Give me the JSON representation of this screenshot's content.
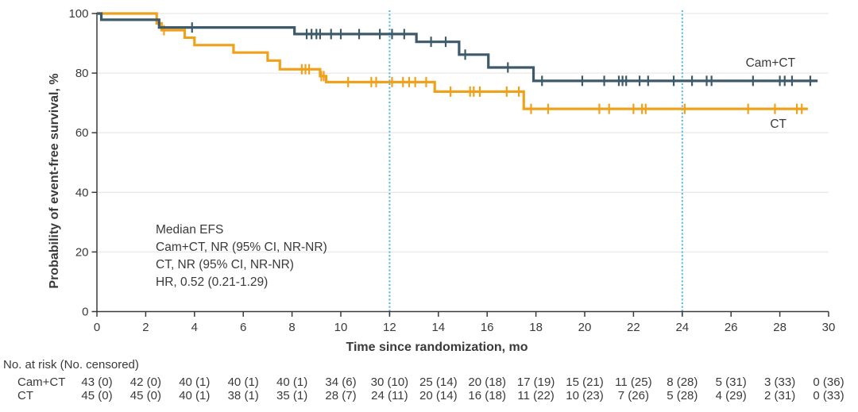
{
  "chart_data": {
    "type": "line",
    "subtype": "kaplan-meier-step",
    "xlabel": "Time since randomization, mo",
    "ylabel": "Probability of event-free survival, %",
    "x_range": [
      0,
      30
    ],
    "y_range": [
      0,
      100
    ],
    "x_ticks": [
      0,
      2,
      4,
      6,
      8,
      10,
      12,
      14,
      16,
      18,
      20,
      22,
      24,
      26,
      28,
      30
    ],
    "y_ticks": [
      0,
      20,
      40,
      60,
      80,
      100
    ],
    "grid_y": [
      20,
      40,
      60,
      80,
      100
    ],
    "grid_color": "#e9e9e9",
    "axis_color": "#3a3a3a",
    "vlines": {
      "x": [
        12,
        24
      ],
      "color": "#47B5E6"
    },
    "annotation": [
      "Median EFS",
      "Cam+CT, NR (95% CI, NR-NR)",
      "CT, NR (95% CI, NR-NR)",
      "HR, 0.52 (0.21-1.29)"
    ],
    "series": [
      {
        "name": "CT",
        "color": "#F0A11C",
        "start": 100,
        "steps": [
          [
            2.45,
            96.7
          ],
          [
            2.65,
            94.4
          ],
          [
            3.6,
            91.9
          ],
          [
            4.0,
            89.4
          ],
          [
            5.6,
            86.9
          ],
          [
            7.0,
            84.2
          ],
          [
            7.5,
            81.3
          ],
          [
            9.15,
            79.0
          ],
          [
            9.4,
            77.0
          ],
          [
            13.85,
            73.8
          ],
          [
            17.5,
            68.0
          ]
        ],
        "end": 29.15,
        "censors": [
          [
            2.75,
            94.4
          ],
          [
            8.4,
            81.3
          ],
          [
            8.55,
            81.3
          ],
          [
            8.7,
            81.3
          ],
          [
            9.2,
            79.0
          ],
          [
            9.3,
            79.0
          ],
          [
            10.3,
            77.0
          ],
          [
            11.25,
            77.0
          ],
          [
            11.45,
            77.0
          ],
          [
            12.1,
            77.0
          ],
          [
            12.55,
            77.0
          ],
          [
            12.8,
            77.0
          ],
          [
            13.05,
            77.0
          ],
          [
            13.5,
            77.0
          ],
          [
            14.5,
            73.8
          ],
          [
            15.3,
            73.8
          ],
          [
            15.45,
            73.8
          ],
          [
            15.7,
            73.8
          ],
          [
            16.8,
            73.8
          ],
          [
            17.3,
            73.8
          ],
          [
            17.8,
            68.0
          ],
          [
            18.5,
            68.0
          ],
          [
            20.6,
            68.0
          ],
          [
            21.0,
            68.0
          ],
          [
            22.0,
            68.0
          ],
          [
            22.35,
            68.0
          ],
          [
            22.5,
            68.0
          ],
          [
            24.1,
            68.0
          ],
          [
            26.7,
            68.0
          ],
          [
            27.8,
            68.0
          ],
          [
            28.7,
            68.0
          ],
          [
            28.9,
            68.0
          ]
        ],
        "label_mo": 27.6,
        "label_pct": 62.7
      },
      {
        "name": "Cam+CT",
        "color": "#3D5A6B",
        "start": 100,
        "steps": [
          [
            0.18,
            97.9
          ],
          [
            2.55,
            95.3
          ],
          [
            8.1,
            93.1
          ],
          [
            13.1,
            90.5
          ],
          [
            14.85,
            86.2
          ],
          [
            16.05,
            81.9
          ],
          [
            17.9,
            77.4
          ]
        ],
        "end": 29.55,
        "censors": [
          [
            3.9,
            95.3
          ],
          [
            8.6,
            93.1
          ],
          [
            8.8,
            93.1
          ],
          [
            9.0,
            93.1
          ],
          [
            9.15,
            93.1
          ],
          [
            9.6,
            93.1
          ],
          [
            10.0,
            93.1
          ],
          [
            10.75,
            93.1
          ],
          [
            11.6,
            93.1
          ],
          [
            12.1,
            93.1
          ],
          [
            12.6,
            93.1
          ],
          [
            13.7,
            90.5
          ],
          [
            14.3,
            90.5
          ],
          [
            15.1,
            86.2
          ],
          [
            16.85,
            81.9
          ],
          [
            18.25,
            77.4
          ],
          [
            19.9,
            77.4
          ],
          [
            20.8,
            77.4
          ],
          [
            21.4,
            77.4
          ],
          [
            21.55,
            77.4
          ],
          [
            21.7,
            77.4
          ],
          [
            22.25,
            77.4
          ],
          [
            22.6,
            77.4
          ],
          [
            23.65,
            77.4
          ],
          [
            24.4,
            77.4
          ],
          [
            25.0,
            77.4
          ],
          [
            25.2,
            77.4
          ],
          [
            26.9,
            77.4
          ],
          [
            28.0,
            77.4
          ],
          [
            28.2,
            77.4
          ],
          [
            28.5,
            77.4
          ],
          [
            29.25,
            77.4
          ]
        ],
        "label_mo": 26.6,
        "label_pct": 83.2
      }
    ],
    "risk_table": {
      "header": "No. at risk (No. censored)",
      "rows": [
        {
          "label": "Cam+CT",
          "values": [
            "43 (0)",
            "42 (0)",
            "40 (1)",
            "40 (1)",
            "40 (1)",
            "34 (6)",
            "30 (10)",
            "25 (14)",
            "20 (18)",
            "17 (19)",
            "15 (21)",
            "11 (25)",
            "8 (28)",
            "5 (31)",
            "3 (33)",
            "0 (36)"
          ]
        },
        {
          "label": "CT",
          "values": [
            "45 (0)",
            "45 (0)",
            "40 (1)",
            "38 (1)",
            "35 (1)",
            "28 (7)",
            "24 (11)",
            "20 (14)",
            "16 (18)",
            "11 (22)",
            "10 (23)",
            "7 (26)",
            "5 (28)",
            "4 (29)",
            "2 (31)",
            "0 (33)"
          ]
        }
      ]
    }
  }
}
